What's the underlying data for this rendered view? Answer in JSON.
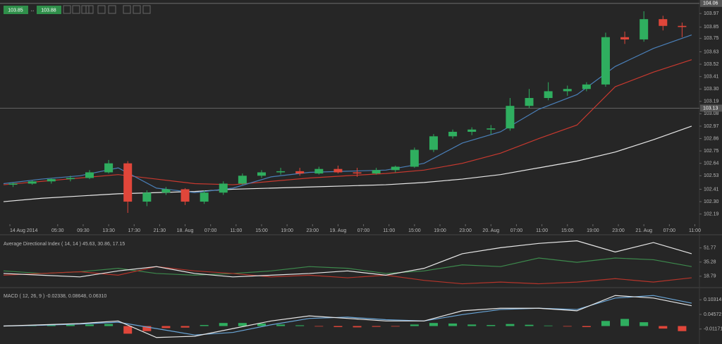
{
  "toolbar": {
    "bid": "103.85",
    "ask": "103.88"
  },
  "chart_data": [
    {
      "type": "candlestick",
      "xlim": [
        0,
        109
      ],
      "xticks": [
        {
          "value": 1,
          "label": "14 Aug 2014"
        },
        {
          "value": 8.5,
          "label": "05:30"
        },
        {
          "value": 12.5,
          "label": "09:30"
        },
        {
          "value": 16.5,
          "label": "13:30"
        },
        {
          "value": 20.5,
          "label": "17:30"
        },
        {
          "value": 24.5,
          "label": "21:30"
        },
        {
          "value": 28.5,
          "label": "18. Aug"
        },
        {
          "value": 32.5,
          "label": "07:00"
        },
        {
          "value": 36.5,
          "label": "11:00"
        },
        {
          "value": 40.5,
          "label": "15:00"
        },
        {
          "value": 44.5,
          "label": "19:00"
        },
        {
          "value": 48.5,
          "label": "23:00"
        },
        {
          "value": 52.5,
          "label": "19. Aug"
        },
        {
          "value": 56.5,
          "label": "07:00"
        },
        {
          "value": 60.5,
          "label": "11:00"
        },
        {
          "value": 64.5,
          "label": "15:00"
        },
        {
          "value": 68.5,
          "label": "19:00"
        },
        {
          "value": 72.5,
          "label": "23:00"
        },
        {
          "value": 76.5,
          "label": "20. Aug"
        },
        {
          "value": 80.5,
          "label": "07:00"
        },
        {
          "value": 84.5,
          "label": "11:00"
        },
        {
          "value": 88.5,
          "label": "15:00"
        },
        {
          "value": 92.5,
          "label": "19:00"
        },
        {
          "value": 96.5,
          "label": "23:00"
        },
        {
          "value": 100.5,
          "label": "21. Aug"
        },
        {
          "value": 104.5,
          "label": "07:00"
        },
        {
          "value": 108.5,
          "label": "11:00"
        }
      ],
      "ylim": [
        102.1,
        104.09
      ],
      "yticks": [
        103.97,
        103.85,
        103.75,
        103.63,
        103.52,
        103.41,
        {
          "value": 103.3,
          "label": "103.30"
        },
        103.19,
        103.08,
        102.97,
        102.86,
        102.75,
        102.64,
        102.53,
        102.41,
        {
          "value": 102.3,
          "label": "102.30"
        },
        102.19
      ],
      "level_lines": [
        104.06,
        103.13
      ],
      "up_color": "#2fae5f",
      "down_color": "#e0463a",
      "candles": {
        "x": [
          1.5,
          4.5,
          7.5,
          10.5,
          13.5,
          16.5,
          19.5,
          22.5,
          25.5,
          28.5,
          31.5,
          34.5,
          37.5,
          40.5,
          43.5,
          46.5,
          49.5,
          52.5,
          55.5,
          58.5,
          61.5,
          64.5,
          67.5,
          70.5,
          73.5,
          76.5,
          79.5,
          82.5,
          85.5,
          88.5,
          91.5,
          94.5,
          97.5,
          100.5,
          103.5,
          106.5
        ],
        "open": [
          102.45,
          102.46,
          102.48,
          102.5,
          102.51,
          102.56,
          102.64,
          102.3,
          102.38,
          102.41,
          102.3,
          102.38,
          102.46,
          102.53,
          102.56,
          102.57,
          102.55,
          102.59,
          102.56,
          102.55,
          102.58,
          102.61,
          102.76,
          102.88,
          102.92,
          102.94,
          102.95,
          103.15,
          103.22,
          103.28,
          103.3,
          103.34,
          103.76,
          103.74,
          103.92,
          103.86
        ],
        "high": [
          102.47,
          102.49,
          102.51,
          102.53,
          102.58,
          102.67,
          102.66,
          102.4,
          102.43,
          102.42,
          102.4,
          102.48,
          102.55,
          102.58,
          102.6,
          102.6,
          102.61,
          102.62,
          102.6,
          102.6,
          102.62,
          102.78,
          102.9,
          102.94,
          102.96,
          102.98,
          103.22,
          103.3,
          103.36,
          103.33,
          103.36,
          103.8,
          103.81,
          103.99,
          103.95,
          103.89
        ],
        "low": [
          102.43,
          102.45,
          102.46,
          102.48,
          102.5,
          102.55,
          102.2,
          102.26,
          102.36,
          102.27,
          102.28,
          102.36,
          102.45,
          102.51,
          102.54,
          102.53,
          102.54,
          102.55,
          102.52,
          102.54,
          102.56,
          102.6,
          102.74,
          102.86,
          102.89,
          102.9,
          102.93,
          103.13,
          103.2,
          103.24,
          103.28,
          103.32,
          103.7,
          103.72,
          103.82,
          103.76
        ],
        "close": [
          102.46,
          102.48,
          102.5,
          102.51,
          102.56,
          102.64,
          102.3,
          102.38,
          102.41,
          102.3,
          102.38,
          102.46,
          102.53,
          102.56,
          102.57,
          102.55,
          102.59,
          102.56,
          102.55,
          102.58,
          102.61,
          102.76,
          102.88,
          102.92,
          102.94,
          102.95,
          103.15,
          103.22,
          103.28,
          103.3,
          103.34,
          103.76,
          103.74,
          103.92,
          103.86,
          103.85
        ]
      },
      "series": [
        {
          "color": "#e8e8e8",
          "x": [
            0,
            6,
            12,
            18,
            24,
            30,
            36,
            42,
            48,
            54,
            60,
            66,
            72,
            78,
            84,
            90,
            96,
            102,
            108
          ],
          "values": [
            102.3,
            102.33,
            102.35,
            102.37,
            102.38,
            102.39,
            102.41,
            102.42,
            102.43,
            102.44,
            102.45,
            102.47,
            102.5,
            102.54,
            102.6,
            102.66,
            102.74,
            102.85,
            102.97
          ]
        },
        {
          "color": "#c8392f",
          "x": [
            0,
            6,
            12,
            18,
            24,
            30,
            36,
            42,
            48,
            54,
            60,
            66,
            72,
            78,
            84,
            90,
            96,
            102,
            108
          ],
          "values": [
            102.45,
            102.48,
            102.51,
            102.54,
            102.5,
            102.46,
            102.45,
            102.48,
            102.51,
            102.53,
            102.55,
            102.58,
            102.64,
            102.73,
            102.86,
            102.98,
            103.32,
            103.45,
            103.56
          ]
        },
        {
          "color": "#4a7fb8",
          "x": [
            0,
            6,
            12,
            18,
            24,
            30,
            36,
            42,
            48,
            54,
            60,
            66,
            72,
            78,
            84,
            90,
            96,
            102,
            108
          ],
          "values": [
            102.46,
            102.5,
            102.53,
            102.6,
            102.42,
            102.38,
            102.42,
            102.52,
            102.56,
            102.57,
            102.58,
            102.64,
            102.82,
            102.92,
            103.12,
            103.25,
            103.5,
            103.66,
            103.78
          ]
        }
      ]
    },
    {
      "type": "line",
      "title": "Average Directional Index ( 14, 14 ) 45.63, 30.86, 17.15",
      "xlim": [
        0,
        109
      ],
      "ylim": [
        8,
        63
      ],
      "yticks": [
        51.77,
        35.28,
        18.79
      ],
      "series": [
        {
          "color": "#3d8a4d",
          "x": [
            0,
            6,
            12,
            18,
            24,
            30,
            36,
            42,
            48,
            54,
            60,
            66,
            72,
            78,
            84,
            90,
            96,
            102,
            108
          ],
          "values": [
            25,
            22,
            24,
            28,
            22,
            20,
            22,
            25,
            30,
            28,
            22,
            25,
            32,
            30,
            40,
            35,
            40,
            38,
            30
          ]
        },
        {
          "color": "#b5342a",
          "x": [
            0,
            6,
            12,
            18,
            24,
            30,
            36,
            42,
            48,
            54,
            60,
            66,
            72,
            78,
            84,
            90,
            96,
            102,
            108
          ],
          "values": [
            20,
            22,
            24,
            20,
            30,
            25,
            22,
            18,
            20,
            17,
            20,
            14,
            10,
            12,
            10,
            12,
            16,
            12,
            17
          ]
        },
        {
          "color": "#e8e8e8",
          "x": [
            0,
            6,
            12,
            18,
            24,
            30,
            36,
            42,
            48,
            54,
            60,
            66,
            72,
            78,
            84,
            90,
            96,
            102,
            108
          ],
          "values": [
            22,
            20,
            18,
            25,
            30,
            22,
            18,
            20,
            22,
            25,
            20,
            28,
            45,
            52,
            57,
            60,
            47,
            58,
            45
          ]
        }
      ]
    },
    {
      "type": "macd",
      "title": "MACD ( 12, 26, 9 ) -0.02338, 0.08648, 0.06310",
      "xlim": [
        0,
        109
      ],
      "ylim": [
        -0.065,
        0.14
      ],
      "yticks": [
        0.10314,
        0.04572,
        -0.01171
      ],
      "up_color": "#2fae5f",
      "down_color": "#e0463a",
      "histogram": {
        "x": [
          1.5,
          4.5,
          7.5,
          10.5,
          13.5,
          16.5,
          19.5,
          22.5,
          25.5,
          28.5,
          31.5,
          34.5,
          37.5,
          40.5,
          43.5,
          46.5,
          49.5,
          52.5,
          55.5,
          58.5,
          61.5,
          64.5,
          67.5,
          70.5,
          73.5,
          76.5,
          79.5,
          82.5,
          85.5,
          88.5,
          91.5,
          94.5,
          97.5,
          100.5,
          103.5,
          106.5
        ],
        "values": [
          0.002,
          0.003,
          0.004,
          0.005,
          0.006,
          0.008,
          -0.03,
          -0.02,
          -0.008,
          -0.006,
          0.004,
          0.012,
          0.012,
          0.01,
          0.006,
          0.003,
          -0.002,
          -0.004,
          -0.005,
          -0.003,
          -0.002,
          0.006,
          0.012,
          0.01,
          0.006,
          0.004,
          0.008,
          0.005,
          0.002,
          -0.002,
          -0.004,
          0.02,
          0.028,
          0.015,
          -0.01,
          -0.02
        ]
      },
      "series": [
        {
          "color": "#6aa6d8",
          "x": [
            0,
            6,
            12,
            18,
            24,
            30,
            36,
            42,
            48,
            54,
            60,
            66,
            72,
            78,
            84,
            90,
            96,
            102,
            108
          ],
          "values": [
            0,
            0.003,
            0.008,
            0.015,
            -0.01,
            -0.035,
            -0.025,
            0.005,
            0.03,
            0.035,
            0.025,
            0.02,
            0.045,
            0.065,
            0.07,
            0.065,
            0.11,
            0.12,
            0.09
          ]
        },
        {
          "color": "#e8e8e8",
          "x": [
            0,
            6,
            12,
            18,
            24,
            30,
            36,
            42,
            48,
            54,
            60,
            66,
            72,
            78,
            84,
            90,
            96,
            102,
            108
          ],
          "values": [
            0,
            0.005,
            0.01,
            0.02,
            -0.045,
            -0.04,
            -0.01,
            0.02,
            0.04,
            0.03,
            0.02,
            0.02,
            0.06,
            0.07,
            0.07,
            0.06,
            0.12,
            0.11,
            0.08
          ]
        }
      ]
    }
  ]
}
